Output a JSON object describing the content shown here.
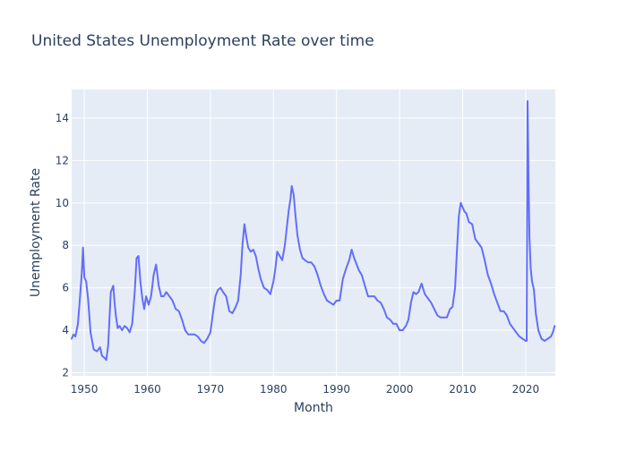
{
  "chart_data": {
    "type": "line",
    "title": "United States Unemployment Rate over time",
    "xlabel": "Month",
    "ylabel": "Unemployment Rate",
    "xlim": [
      1948,
      2024.7
    ],
    "ylim": [
      1.85,
      15.35
    ],
    "x_ticks": [
      1950,
      1960,
      1970,
      1980,
      1990,
      2000,
      2010,
      2020
    ],
    "y_ticks": [
      2,
      4,
      6,
      8,
      10,
      12,
      14
    ],
    "grid": true,
    "legend": "none",
    "colors": {
      "line": "#636efa",
      "plot_background": "#e5ecf6",
      "grid": "#ffffff",
      "text": "#2a3f5f"
    },
    "series": [
      {
        "x": [
          1948.0,
          1948.3,
          1948.6,
          1949.0,
          1949.3,
          1949.6,
          1949.8,
          1950.0,
          1950.3,
          1950.6,
          1951.0,
          1951.5,
          1952.0,
          1952.5,
          1952.8,
          1953.2,
          1953.5,
          1953.8,
          1954.2,
          1954.6,
          1954.8,
          1955.0,
          1955.3,
          1955.6,
          1956.0,
          1956.4,
          1956.8,
          1957.2,
          1957.6,
          1958.0,
          1958.3,
          1958.6,
          1958.9,
          1959.2,
          1959.5,
          1959.8,
          1960.2,
          1960.6,
          1961.0,
          1961.4,
          1961.8,
          1962.2,
          1962.6,
          1963.0,
          1963.5,
          1964.0,
          1964.5,
          1965.0,
          1965.5,
          1966.0,
          1966.5,
          1967.0,
          1967.5,
          1968.0,
          1968.5,
          1969.0,
          1969.5,
          1970.0,
          1970.4,
          1970.8,
          1971.2,
          1971.6,
          1972.0,
          1972.5,
          1973.0,
          1973.5,
          1974.0,
          1974.4,
          1974.8,
          1975.1,
          1975.4,
          1975.7,
          1976.0,
          1976.4,
          1976.8,
          1977.2,
          1977.6,
          1978.0,
          1978.5,
          1979.0,
          1979.5,
          1980.0,
          1980.3,
          1980.6,
          1981.0,
          1981.4,
          1981.8,
          1982.1,
          1982.4,
          1982.7,
          1982.9,
          1983.2,
          1983.5,
          1983.8,
          1984.2,
          1984.6,
          1985.0,
          1985.5,
          1986.0,
          1986.5,
          1987.0,
          1987.5,
          1988.0,
          1988.5,
          1989.0,
          1989.5,
          1990.0,
          1990.5,
          1991.0,
          1991.5,
          1992.0,
          1992.4,
          1992.8,
          1993.2,
          1993.6,
          1994.0,
          1994.5,
          1995.0,
          1995.5,
          1996.0,
          1996.5,
          1997.0,
          1997.5,
          1998.0,
          1998.5,
          1999.0,
          1999.5,
          2000.0,
          2000.5,
          2001.0,
          2001.4,
          2001.8,
          2002.2,
          2002.6,
          2003.0,
          2003.5,
          2004.0,
          2004.5,
          2005.0,
          2005.5,
          2006.0,
          2006.5,
          2007.0,
          2007.5,
          2008.0,
          2008.4,
          2008.8,
          2009.1,
          2009.4,
          2009.7,
          2010.0,
          2010.3,
          2010.6,
          2011.0,
          2011.5,
          2012.0,
          2012.5,
          2013.0,
          2013.5,
          2014.0,
          2014.5,
          2015.0,
          2015.5,
          2016.0,
          2016.5,
          2017.0,
          2017.5,
          2018.0,
          2018.5,
          2019.0,
          2019.5,
          2020.0,
          2020.15,
          2020.3,
          2020.45,
          2020.6,
          2020.8,
          2021.0,
          2021.3,
          2021.6,
          2022.0,
          2022.5,
          2023.0,
          2023.5,
          2024.0,
          2024.3,
          2024.6
        ],
        "y": [
          3.6,
          3.8,
          3.7,
          4.3,
          5.5,
          6.7,
          7.9,
          6.5,
          6.3,
          5.5,
          3.9,
          3.1,
          3.0,
          3.2,
          2.8,
          2.7,
          2.6,
          3.3,
          5.8,
          6.1,
          5.3,
          4.7,
          4.1,
          4.2,
          4.0,
          4.2,
          4.1,
          3.9,
          4.3,
          5.8,
          7.4,
          7.5,
          6.3,
          5.5,
          5.0,
          5.6,
          5.2,
          5.6,
          6.6,
          7.1,
          6.1,
          5.6,
          5.6,
          5.8,
          5.6,
          5.4,
          5.0,
          4.9,
          4.5,
          4.0,
          3.8,
          3.8,
          3.8,
          3.7,
          3.5,
          3.4,
          3.6,
          3.9,
          4.8,
          5.6,
          5.9,
          6.0,
          5.8,
          5.6,
          4.9,
          4.8,
          5.1,
          5.4,
          6.6,
          8.1,
          9.0,
          8.4,
          7.9,
          7.7,
          7.8,
          7.5,
          6.9,
          6.4,
          6.0,
          5.9,
          5.7,
          6.3,
          6.9,
          7.7,
          7.5,
          7.3,
          8.0,
          8.8,
          9.6,
          10.2,
          10.8,
          10.4,
          9.4,
          8.5,
          7.8,
          7.4,
          7.3,
          7.2,
          7.2,
          7.0,
          6.6,
          6.1,
          5.7,
          5.4,
          5.3,
          5.2,
          5.4,
          5.4,
          6.4,
          6.9,
          7.3,
          7.8,
          7.4,
          7.1,
          6.8,
          6.6,
          6.1,
          5.6,
          5.6,
          5.6,
          5.4,
          5.3,
          5.0,
          4.6,
          4.5,
          4.3,
          4.3,
          4.0,
          4.0,
          4.2,
          4.5,
          5.3,
          5.8,
          5.7,
          5.8,
          6.2,
          5.7,
          5.5,
          5.3,
          5.0,
          4.7,
          4.6,
          4.6,
          4.6,
          5.0,
          5.1,
          6.0,
          7.8,
          9.4,
          10.0,
          9.8,
          9.6,
          9.5,
          9.1,
          9.0,
          8.3,
          8.1,
          7.9,
          7.3,
          6.6,
          6.2,
          5.7,
          5.3,
          4.9,
          4.9,
          4.7,
          4.3,
          4.1,
          3.9,
          3.7,
          3.6,
          3.5,
          3.5,
          14.8,
          11.0,
          8.4,
          6.9,
          6.3,
          5.9,
          4.8,
          4.0,
          3.6,
          3.5,
          3.6,
          3.7,
          3.9,
          4.2
        ]
      }
    ]
  }
}
